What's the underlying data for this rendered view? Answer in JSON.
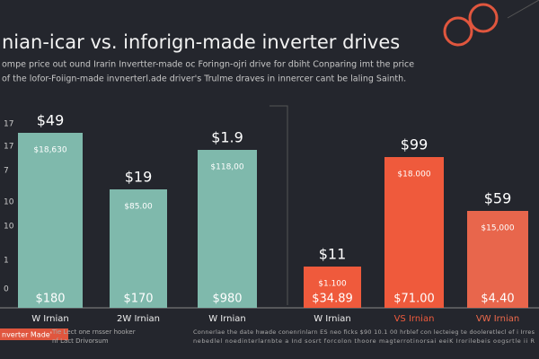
{
  "header": {
    "title": "nian-icar vs. inforign-made inverter drives",
    "subtitle": [
      "ompe price out ound Irarin Invertter-made oc Foringn-ojri drive for dbiht Conparing imt the price",
      "of the lofor-Foiign-made invnerterl.ade driver's Trulme draves in innercer cant be laling Sainth."
    ]
  },
  "axis_labels": [
    "17",
    "17",
    "7",
    "10",
    "10",
    "1",
    "0"
  ],
  "bars": [
    {
      "top": "$49",
      "inner": "$18,630",
      "bottom": "$180",
      "category": "W Irnian"
    },
    {
      "top": "$19",
      "inner": "$85.00",
      "bottom": "$170",
      "category": "2W Irnian"
    },
    {
      "top": "$1.9",
      "inner": "$118,00",
      "bottom": "$980",
      "category": "W Irnian"
    },
    {
      "top": "$11",
      "inner": "$1.100",
      "bottom": "$34.89",
      "category": "W Irnian"
    },
    {
      "top": "$99",
      "inner": "$18.000",
      "bottom": "$71.00",
      "category": "VS Irnian"
    },
    {
      "top": "$59",
      "inner": "$15,000",
      "bottom": "$4.40",
      "category": "VW Irnian"
    }
  ],
  "footer": {
    "tag": "nverter Made'",
    "note": [
      "Tie Lect one rnsser hooker",
      "nf Lact Drivorsum"
    ],
    "text": [
      "Connerlae the date hwade conenrinlarn ES neo ficks $90 10.1 00 hrblef con lecteieg te dooleretlecl ef i Irres",
      "nebedlel noedinterlarnbte a Ind sosrt forcolon thoore magterrotinorsai eeiK Irorilebeis oogsrtle ii R"
    ]
  }
}
